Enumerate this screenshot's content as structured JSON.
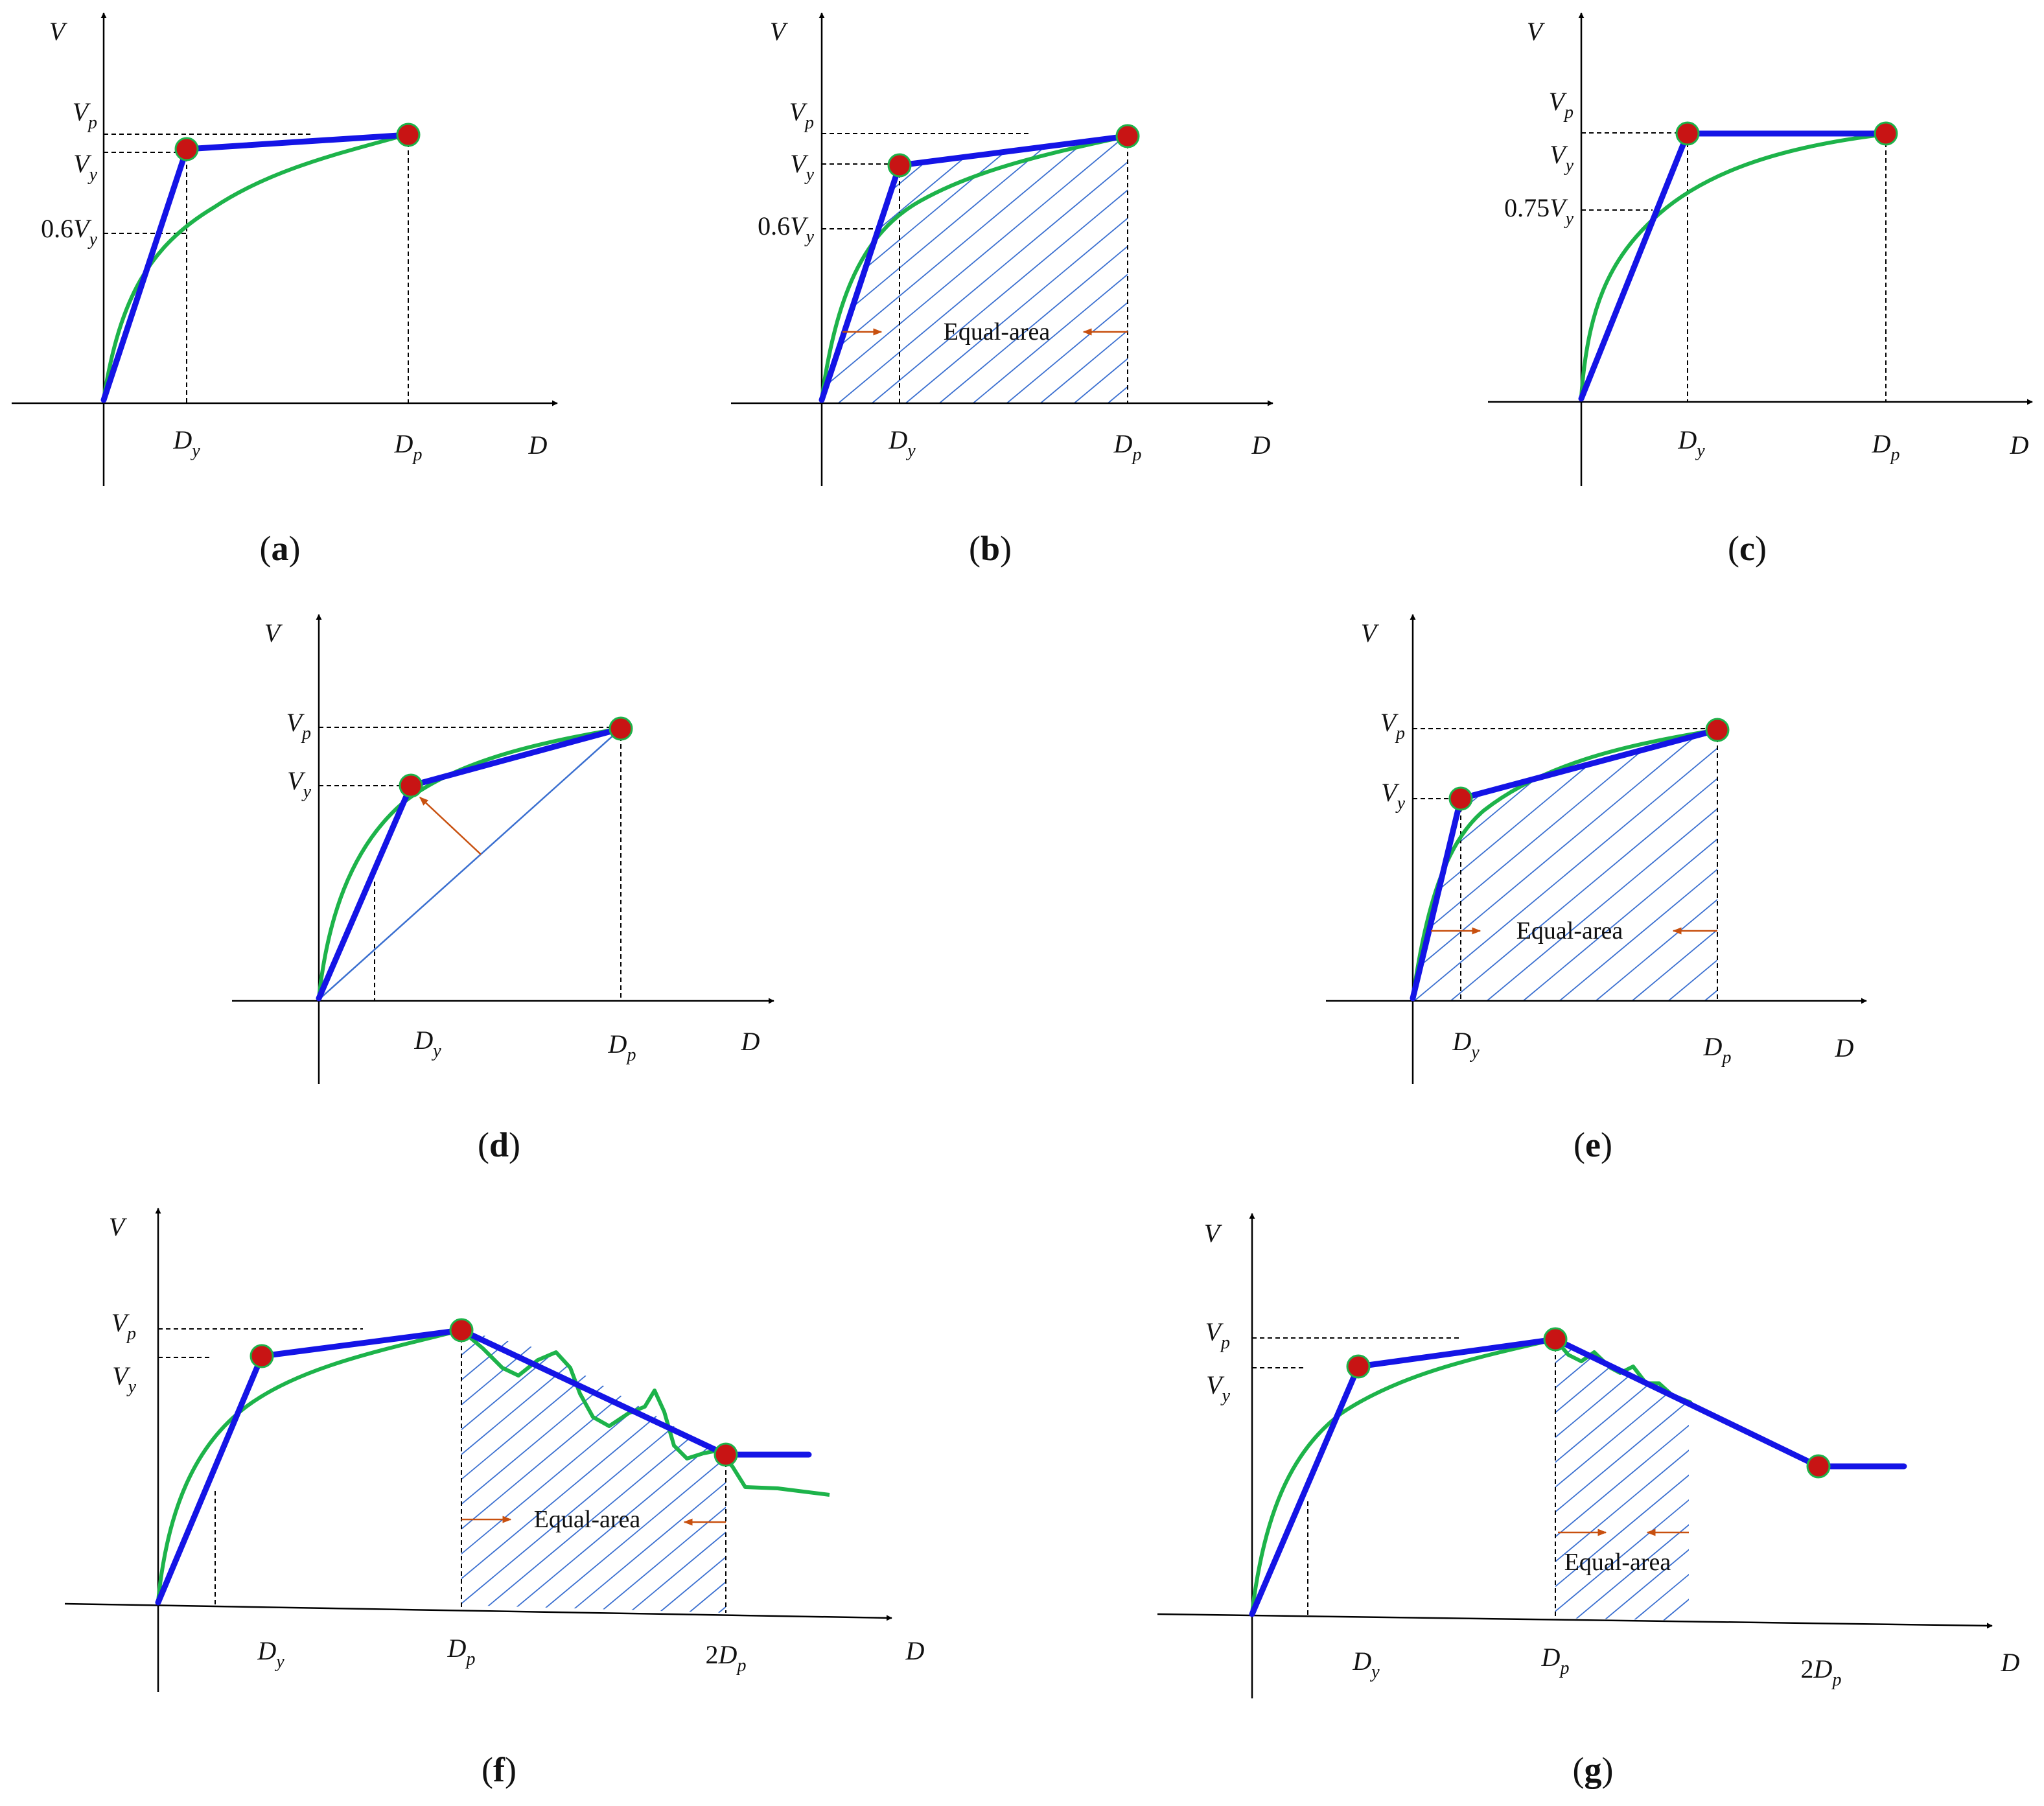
{
  "colors": {
    "axis": "#000000",
    "bilinear": "#1414e6",
    "curve": "#1db34a",
    "point_fill": "#c81414",
    "point_stroke": "#1db34a",
    "hatch": "#3a6fd0",
    "arrow": "#c8500f",
    "dash": "#000000"
  },
  "panels": [
    {
      "id": "a",
      "label": "a",
      "axis_x": "D",
      "axis_y": "V",
      "y_levels": [
        {
          "main": "V",
          "sub": "p"
        },
        {
          "main": "V",
          "sub": "y"
        },
        {
          "prefix": "0.6",
          "main": "V",
          "sub": "y"
        }
      ],
      "x_marks": [
        {
          "main": "D",
          "sub": "y"
        },
        {
          "main": "D",
          "sub": "p"
        }
      ]
    },
    {
      "id": "b",
      "label": "b",
      "axis_x": "D",
      "axis_y": "V",
      "y_levels": [
        {
          "main": "V",
          "sub": "p"
        },
        {
          "main": "V",
          "sub": "y"
        },
        {
          "prefix": "0.6",
          "main": "V",
          "sub": "y"
        }
      ],
      "x_marks": [
        {
          "main": "D",
          "sub": "y"
        },
        {
          "main": "D",
          "sub": "p"
        }
      ],
      "area_text": "Equal-area"
    },
    {
      "id": "c",
      "label": "c",
      "axis_x": "D",
      "axis_y": "V",
      "y_levels": [
        {
          "main": "V",
          "sub": "p"
        },
        {
          "main": "V",
          "sub": "y"
        },
        {
          "prefix": "0.75",
          "main": "V",
          "sub": "y"
        }
      ],
      "x_marks": [
        {
          "main": "D",
          "sub": "y"
        },
        {
          "main": "D",
          "sub": "p"
        }
      ]
    },
    {
      "id": "d",
      "label": "d",
      "axis_x": "D",
      "axis_y": "V",
      "y_levels": [
        {
          "main": "V",
          "sub": "p"
        },
        {
          "main": "V",
          "sub": "y"
        }
      ],
      "x_marks": [
        {
          "main": "D",
          "sub": "y"
        },
        {
          "main": "D",
          "sub": "p"
        }
      ]
    },
    {
      "id": "e",
      "label": "e",
      "axis_x": "D",
      "axis_y": "V",
      "y_levels": [
        {
          "main": "V",
          "sub": "p"
        },
        {
          "main": "V",
          "sub": "y"
        }
      ],
      "x_marks": [
        {
          "main": "D",
          "sub": "y"
        },
        {
          "main": "D",
          "sub": "p"
        }
      ],
      "area_text": "Equal-area"
    },
    {
      "id": "f",
      "label": "f",
      "axis_x": "D",
      "axis_y": "V",
      "y_levels": [
        {
          "main": "V",
          "sub": "p"
        },
        {
          "main": "V",
          "sub": "y"
        }
      ],
      "x_marks": [
        {
          "main": "D",
          "sub": "y"
        },
        {
          "main": "D",
          "sub": "p"
        },
        {
          "prefix": "2",
          "main": "D",
          "sub": "p"
        }
      ],
      "area_text": "Equal-area"
    },
    {
      "id": "g",
      "label": "g",
      "axis_x": "D",
      "axis_y": "V",
      "y_levels": [
        {
          "main": "V",
          "sub": "p"
        },
        {
          "main": "V",
          "sub": "y"
        }
      ],
      "x_marks": [
        {
          "main": "D",
          "sub": "y"
        },
        {
          "main": "D",
          "sub": "p"
        },
        {
          "prefix": "2",
          "main": "D",
          "sub": "p"
        }
      ],
      "area_text": "Equal-area"
    }
  ]
}
